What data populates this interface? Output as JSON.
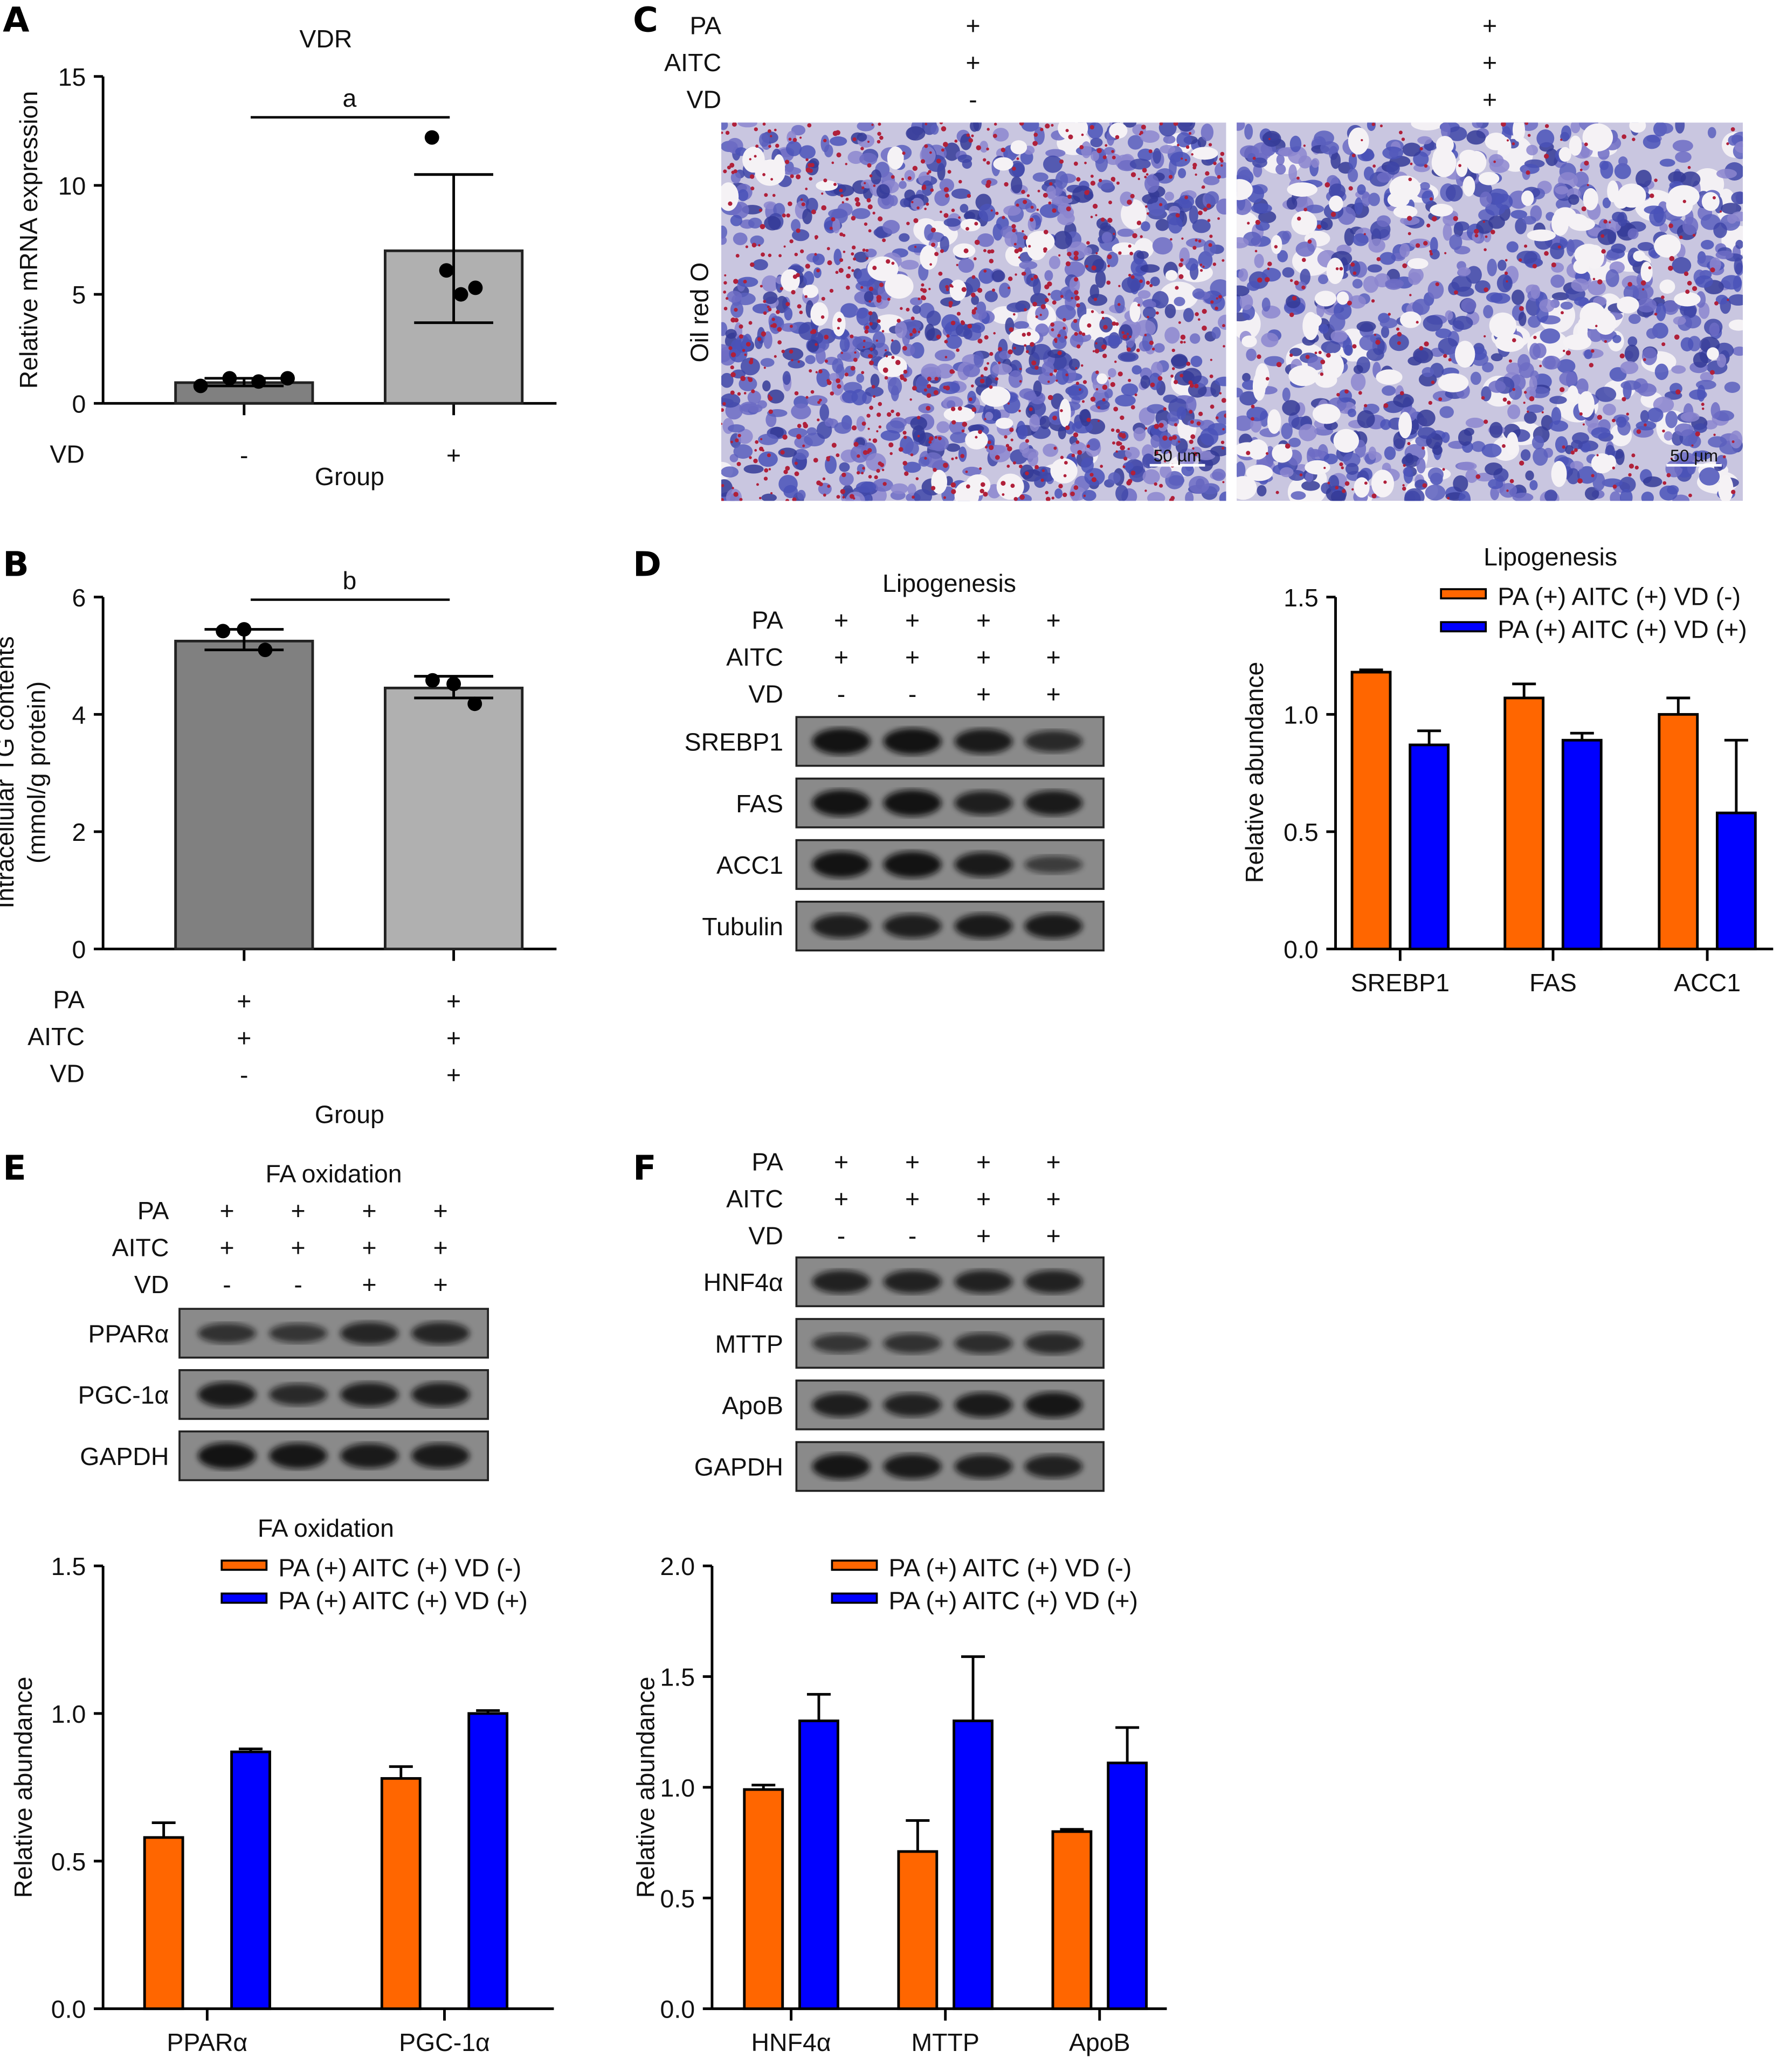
{
  "panel_letters": {
    "A": "A",
    "B": "B",
    "C": "C",
    "D": "D",
    "E": "E",
    "F": "F"
  },
  "panel_c": {
    "row_labels": [
      "PA",
      "AITC",
      "VD"
    ],
    "columns": [
      [
        "+",
        "+",
        "-"
      ],
      [
        "+",
        "+",
        "+"
      ]
    ],
    "stain_label": "Oil red O",
    "scale_bar": "50 µm"
  },
  "blot_d": {
    "title": "Lipogenesis",
    "row_labels": [
      "PA",
      "AITC",
      "VD"
    ],
    "lanes": [
      [
        "+",
        "+",
        "-"
      ],
      [
        "+",
        "+",
        "-"
      ],
      [
        "+",
        "+",
        "+"
      ],
      [
        "+",
        "+",
        "+"
      ]
    ],
    "proteins": [
      "SREBP1",
      "FAS",
      "ACC1",
      "Tubulin"
    ]
  },
  "blot_e": {
    "title": "FA oxidation",
    "row_labels": [
      "PA",
      "AITC",
      "VD"
    ],
    "lanes": [
      [
        "+",
        "+",
        "-"
      ],
      [
        "+",
        "+",
        "-"
      ],
      [
        "+",
        "+",
        "+"
      ],
      [
        "+",
        "+",
        "+"
      ]
    ],
    "proteins": [
      "PPARα",
      "PGC-1α",
      "GAPDH"
    ]
  },
  "blot_f": {
    "row_labels": [
      "PA",
      "AITC",
      "VD"
    ],
    "lanes": [
      [
        "+",
        "+",
        "-"
      ],
      [
        "+",
        "+",
        "-"
      ],
      [
        "+",
        "+",
        "+"
      ],
      [
        "+",
        "+",
        "+"
      ]
    ],
    "proteins": [
      "HNF4α",
      "MTTP",
      "ApoB",
      "GAPDH"
    ]
  },
  "colors": {
    "orange": "#ff6600",
    "blue": "#0000ff",
    "dark_gray": "#808080",
    "light_gray": "#b0b0b0"
  },
  "chart_data": [
    {
      "id": "A",
      "type": "bar",
      "title": "VDR",
      "ylabel": "Relative mRNA expression",
      "xlabel": "Group",
      "ylim": [
        0,
        15
      ],
      "yticks": [
        "0",
        "5",
        "10",
        "15"
      ],
      "condition_rows": [
        {
          "label": "VD",
          "values": [
            "-",
            "+"
          ]
        }
      ],
      "categories": [
        "VD -",
        "VD +"
      ],
      "values": [
        0.95,
        7.0
      ],
      "error_low": [
        0.8,
        3.7
      ],
      "error_high": [
        1.15,
        10.5
      ],
      "points": [
        [
          0.8,
          1.15,
          1.0,
          1.15
        ],
        [
          12.2,
          6.1,
          5.0,
          5.3
        ]
      ],
      "significance": "a"
    },
    {
      "id": "B",
      "type": "bar",
      "title": "",
      "ylabel": "Intracellular TG contents (mmol/g protein)",
      "ylabel_lines": [
        "Intracellular TG contents",
        "(mmol/g protein)"
      ],
      "xlabel": "Group",
      "ylim": [
        0,
        6
      ],
      "yticks": [
        "0",
        "2",
        "4",
        "6"
      ],
      "condition_rows": [
        {
          "label": "PA",
          "values": [
            "+",
            "+"
          ]
        },
        {
          "label": "AITC",
          "values": [
            "+",
            "+"
          ]
        },
        {
          "label": "VD",
          "values": [
            "-",
            "+"
          ]
        }
      ],
      "categories": [
        "VD -",
        "VD +"
      ],
      "values": [
        5.25,
        4.45
      ],
      "error_low": [
        5.1,
        4.28
      ],
      "error_high": [
        5.45,
        4.65
      ],
      "points": [
        [
          5.42,
          5.45,
          5.1
        ],
        [
          4.58,
          4.52,
          4.18
        ]
      ],
      "significance": "b"
    },
    {
      "id": "D",
      "type": "bar",
      "title": "Lipogenesis",
      "ylabel": "Relative abundance",
      "ylim": [
        0,
        1.5
      ],
      "yticks": [
        "0.0",
        "0.5",
        "1.0",
        "1.5"
      ],
      "categories": [
        "SREBP1",
        "FAS",
        "ACC1"
      ],
      "series": [
        {
          "name": "PA (+) AITC (+) VD (-)",
          "color": "#ff6600",
          "values": [
            1.18,
            1.07,
            1.0
          ],
          "error_high": [
            1.19,
            1.13,
            1.07
          ]
        },
        {
          "name": "PA (+) AITC (+) VD (+)",
          "color": "#0000ff",
          "values": [
            0.87,
            0.89,
            0.58
          ],
          "error_high": [
            0.93,
            0.92,
            0.89
          ]
        }
      ],
      "legend": "top-right"
    },
    {
      "id": "E",
      "type": "bar",
      "title": "FA oxidation",
      "ylabel": "Relative abundance",
      "ylim": [
        0,
        1.5
      ],
      "yticks": [
        "0.0",
        "0.5",
        "1.0",
        "1.5"
      ],
      "categories": [
        "PPARα",
        "PGC-1α"
      ],
      "series": [
        {
          "name": "PA (+) AITC (+) VD (-)",
          "color": "#ff6600",
          "values": [
            0.58,
            0.78
          ],
          "error_high": [
            0.63,
            0.82
          ]
        },
        {
          "name": "PA (+) AITC (+) VD (+)",
          "color": "#0000ff",
          "values": [
            0.87,
            1.0
          ],
          "error_high": [
            0.88,
            1.01
          ]
        }
      ],
      "legend": "top-right"
    },
    {
      "id": "F",
      "type": "bar",
      "title": "",
      "ylabel": "Relative abundance",
      "ylim": [
        0,
        2.0
      ],
      "yticks": [
        "0.0",
        "0.5",
        "1.0",
        "1.5",
        "2.0"
      ],
      "categories": [
        "HNF4α",
        "MTTP",
        "ApoB"
      ],
      "series": [
        {
          "name": "PA (+) AITC (+) VD (-)",
          "color": "#ff6600",
          "values": [
            0.99,
            0.71,
            0.8
          ],
          "error_high": [
            1.01,
            0.85,
            0.81
          ]
        },
        {
          "name": "PA (+) AITC (+) VD (+)",
          "color": "#0000ff",
          "values": [
            1.3,
            1.3,
            1.11
          ],
          "error_high": [
            1.42,
            1.59,
            1.27
          ]
        }
      ],
      "legend": "top-right"
    }
  ]
}
